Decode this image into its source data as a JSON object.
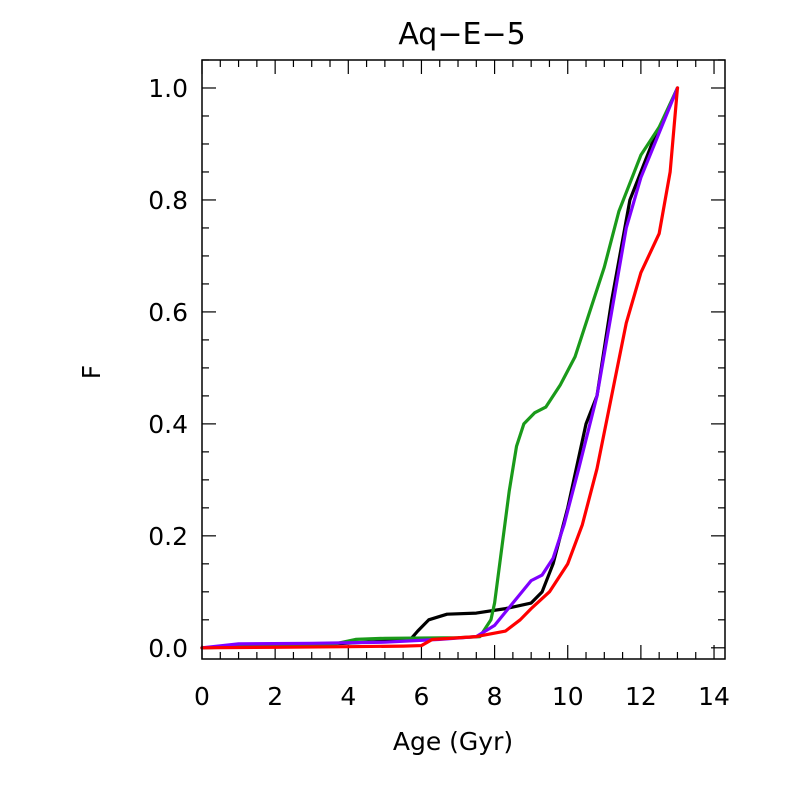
{
  "chart_data": {
    "type": "line",
    "title": "Aq−E−5",
    "xlabel": "Age (Gyr)",
    "ylabel": "F",
    "xlim": [
      0,
      14.3
    ],
    "ylim": [
      -0.02,
      1.05
    ],
    "xticks": [
      0,
      2,
      4,
      6,
      8,
      10,
      12,
      14
    ],
    "xtick_labels": [
      "0",
      "2",
      "4",
      "6",
      "8",
      "10",
      "12",
      "14"
    ],
    "yticks": [
      0.0,
      0.2,
      0.4,
      0.6,
      0.8,
      1.0
    ],
    "ytick_labels": [
      "0.0",
      "0.2",
      "0.4",
      "0.6",
      "0.8",
      "1.0"
    ],
    "x_minor_step": 0.5,
    "y_minor_step": 0.05,
    "grid": false,
    "series": [
      {
        "name": "black",
        "color": "#000000",
        "points": [
          [
            0,
            0
          ],
          [
            1,
            0.002
          ],
          [
            3,
            0.005
          ],
          [
            4.5,
            0.01
          ],
          [
            5.7,
            0.015
          ],
          [
            5.9,
            0.03
          ],
          [
            6.2,
            0.05
          ],
          [
            6.7,
            0.06
          ],
          [
            7.5,
            0.062
          ],
          [
            8.3,
            0.07
          ],
          [
            9.0,
            0.08
          ],
          [
            9.3,
            0.1
          ],
          [
            9.6,
            0.15
          ],
          [
            10.0,
            0.25
          ],
          [
            10.5,
            0.4
          ],
          [
            10.8,
            0.45
          ],
          [
            11.2,
            0.62
          ],
          [
            11.7,
            0.8
          ],
          [
            12.3,
            0.9
          ],
          [
            12.8,
            0.97
          ],
          [
            13.0,
            1.0
          ]
        ]
      },
      {
        "name": "green",
        "color": "#1a9a1a",
        "points": [
          [
            0,
            0
          ],
          [
            2,
            0.003
          ],
          [
            3.5,
            0.005
          ],
          [
            4.2,
            0.015
          ],
          [
            5.0,
            0.017
          ],
          [
            7.0,
            0.018
          ],
          [
            7.6,
            0.02
          ],
          [
            7.9,
            0.05
          ],
          [
            8.0,
            0.08
          ],
          [
            8.2,
            0.18
          ],
          [
            8.4,
            0.28
          ],
          [
            8.6,
            0.36
          ],
          [
            8.8,
            0.4
          ],
          [
            9.1,
            0.42
          ],
          [
            9.4,
            0.43
          ],
          [
            9.8,
            0.47
          ],
          [
            10.2,
            0.52
          ],
          [
            10.6,
            0.6
          ],
          [
            11.0,
            0.68
          ],
          [
            11.4,
            0.78
          ],
          [
            12.0,
            0.88
          ],
          [
            12.5,
            0.93
          ],
          [
            13.0,
            1.0
          ]
        ]
      },
      {
        "name": "purple",
        "color": "#7f00ff",
        "points": [
          [
            0,
            0
          ],
          [
            1,
            0.007
          ],
          [
            3,
            0.008
          ],
          [
            5,
            0.01
          ],
          [
            6.5,
            0.015
          ],
          [
            7.5,
            0.02
          ],
          [
            8.0,
            0.04
          ],
          [
            8.5,
            0.08
          ],
          [
            9.0,
            0.12
          ],
          [
            9.3,
            0.13
          ],
          [
            9.6,
            0.16
          ],
          [
            9.9,
            0.22
          ],
          [
            10.3,
            0.32
          ],
          [
            10.8,
            0.45
          ],
          [
            11.2,
            0.6
          ],
          [
            11.6,
            0.75
          ],
          [
            12.0,
            0.84
          ],
          [
            12.5,
            0.92
          ],
          [
            13.0,
            1.0
          ]
        ]
      },
      {
        "name": "red",
        "color": "#ff0000",
        "points": [
          [
            0,
            0
          ],
          [
            2,
            0.001
          ],
          [
            4,
            0.002
          ],
          [
            5.5,
            0.003
          ],
          [
            6.0,
            0.004
          ],
          [
            6.3,
            0.015
          ],
          [
            7.5,
            0.02
          ],
          [
            8.3,
            0.03
          ],
          [
            8.7,
            0.05
          ],
          [
            9.0,
            0.07
          ],
          [
            9.5,
            0.1
          ],
          [
            10.0,
            0.15
          ],
          [
            10.4,
            0.22
          ],
          [
            10.8,
            0.32
          ],
          [
            11.2,
            0.45
          ],
          [
            11.6,
            0.58
          ],
          [
            12.0,
            0.67
          ],
          [
            12.5,
            0.74
          ],
          [
            12.8,
            0.85
          ],
          [
            13.0,
            1.0
          ]
        ]
      }
    ]
  }
}
